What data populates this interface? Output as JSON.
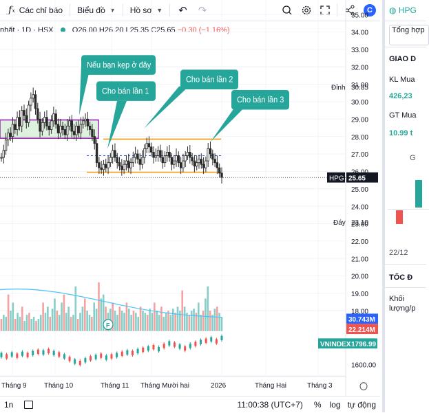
{
  "toolbar": {
    "indicators_label": "Các chỉ báo",
    "chart_type_label": "Biểu đồ",
    "profile_label": "Hồ sơ"
  },
  "legend": {
    "title": "nhất · 1D · HSX",
    "open": "O26.00",
    "high": "H26.20",
    "low": "L25.35",
    "close": "C25.65",
    "change": "−0.30 (−1.16%)"
  },
  "price_axis": {
    "ticks": [
      "35.00",
      "34.00",
      "33.00",
      "32.00",
      "31.00",
      "30.00",
      "29.00",
      "28.00",
      "27.00",
      "26.00",
      "25.00",
      "24.00",
      "23.00",
      "22.00",
      "21.00",
      "20.00",
      "19.00",
      "18.00"
    ],
    "high_label": "Đỉnh",
    "high_value": "30.85",
    "low_label": "Đáy",
    "low_value": "23.10",
    "symbol_label": "HPG",
    "symbol_value": "25.65",
    "vol_ma_value": "30.743M",
    "vol_value": "22.214M",
    "index_label": "VNINDEX",
    "index_value": "1796.99",
    "index_tick": "1600.00"
  },
  "time_axis": [
    "Tháng 9",
    "Tháng 10",
    "Tháng 11",
    "Tháng Mười hai",
    "2026",
    "Tháng Hai",
    "Tháng 3"
  ],
  "annotations": {
    "note_1": "Nếu bạn kẹp ở đây",
    "note_2": "Cho bán lần 1",
    "note_3": "Cho bán lần 2",
    "note_4": "Cho bán lần 3",
    "earnings_marker": "F"
  },
  "status": {
    "interval": "1n",
    "time": "11:00:38 (UTC+7)",
    "percent": "%",
    "log": "log",
    "auto": "tự động"
  },
  "right_panel": {
    "symbol": "HPG",
    "tab": "Tổng hợp",
    "section_1": "GIAO D",
    "kl_label": "KL Mua",
    "kl_value": "426,23",
    "gt_label": "GT Mua",
    "gt_value": "10.99 t",
    "g_label": "G",
    "date": "22/12",
    "section_2": "TỐC Đ",
    "khoi_label": "Khối lượng/p"
  },
  "colors": {
    "up": "#26a69a",
    "down": "#ef5350",
    "accent": "#2962ff",
    "callout": "#26a69a",
    "range": "#ff9800",
    "zone": "#9c27b0"
  }
}
